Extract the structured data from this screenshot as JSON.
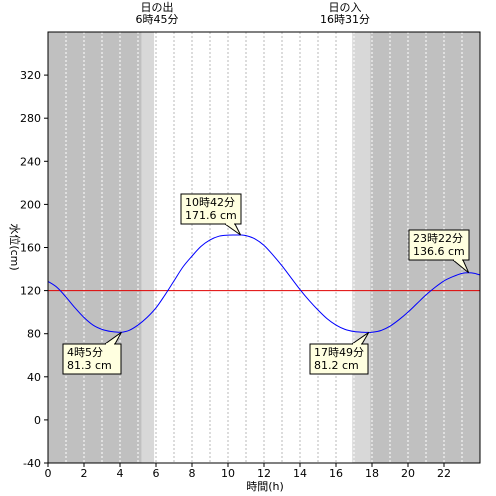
{
  "chart_data": {
    "type": "line",
    "xlabel": "時間(h)",
    "ylabel": "水位(cm)",
    "xlim": [
      0,
      24
    ],
    "ylim": [
      -40,
      360
    ],
    "x_ticks": [
      0,
      2,
      4,
      6,
      8,
      10,
      12,
      14,
      16,
      18,
      20,
      22
    ],
    "y_ticks": [
      -40,
      0,
      40,
      80,
      120,
      160,
      200,
      240,
      280,
      320
    ],
    "grid": "vertical-dotted-hourly",
    "sunrise": {
      "label": "日の出",
      "time": "6時45分",
      "hour": 6.75
    },
    "sunset": {
      "label": "日の入",
      "time": "16時31分",
      "hour": 16.52
    },
    "twilight": {
      "dawn_start": 5.2,
      "dawn_end": 5.9,
      "dusk_start": 16.9,
      "dusk_end": 17.9
    },
    "reference_line": {
      "value": 120,
      "color": "#e00000"
    },
    "series": [
      {
        "color": "#0000ff",
        "x": [
          0,
          0.5,
          1,
          1.5,
          2,
          2.5,
          3,
          3.5,
          4,
          4.08,
          4.5,
          5,
          5.5,
          6,
          6.5,
          7,
          7.5,
          8,
          8.5,
          9,
          9.5,
          10,
          10.5,
          10.7,
          11,
          11.5,
          12,
          12.5,
          13,
          13.5,
          14,
          14.5,
          15,
          15.5,
          16,
          16.5,
          17,
          17.5,
          17.82,
          18,
          18.5,
          19,
          19.5,
          20,
          20.5,
          21,
          21.5,
          22,
          22.5,
          23,
          23.37,
          23.7,
          24
        ],
        "values": [
          128.5,
          123,
          114,
          104,
          95,
          88,
          84,
          82,
          81.3,
          81.3,
          83,
          88,
          95,
          104,
          116,
          129,
          142,
          152,
          161,
          167,
          170.5,
          171.5,
          171.6,
          171.6,
          171,
          168,
          162,
          153,
          143,
          132,
          121,
          111,
          102,
          94,
          88,
          84,
          82,
          81.3,
          81.2,
          81.3,
          83,
          87,
          93,
          100,
          108,
          116,
          123,
          129,
          133,
          136,
          136.6,
          136,
          134.5
        ]
      }
    ],
    "annotations": [
      {
        "time": "4時5分",
        "value": "81.3 cm",
        "x": 4.08,
        "y": 81.3
      },
      {
        "time": "10時42分",
        "value": "171.6 cm",
        "x": 10.7,
        "y": 171.6
      },
      {
        "time": "17時49分",
        "value": "81.2 cm",
        "x": 17.82,
        "y": 81.2
      },
      {
        "time": "23時22分",
        "value": "136.6 cm",
        "x": 23.37,
        "y": 136.6
      }
    ],
    "colors": {
      "night": "#c0c0c0",
      "twilight": "#d8d8d8",
      "day": "#ffffff",
      "callout": "#ffffe0"
    }
  }
}
